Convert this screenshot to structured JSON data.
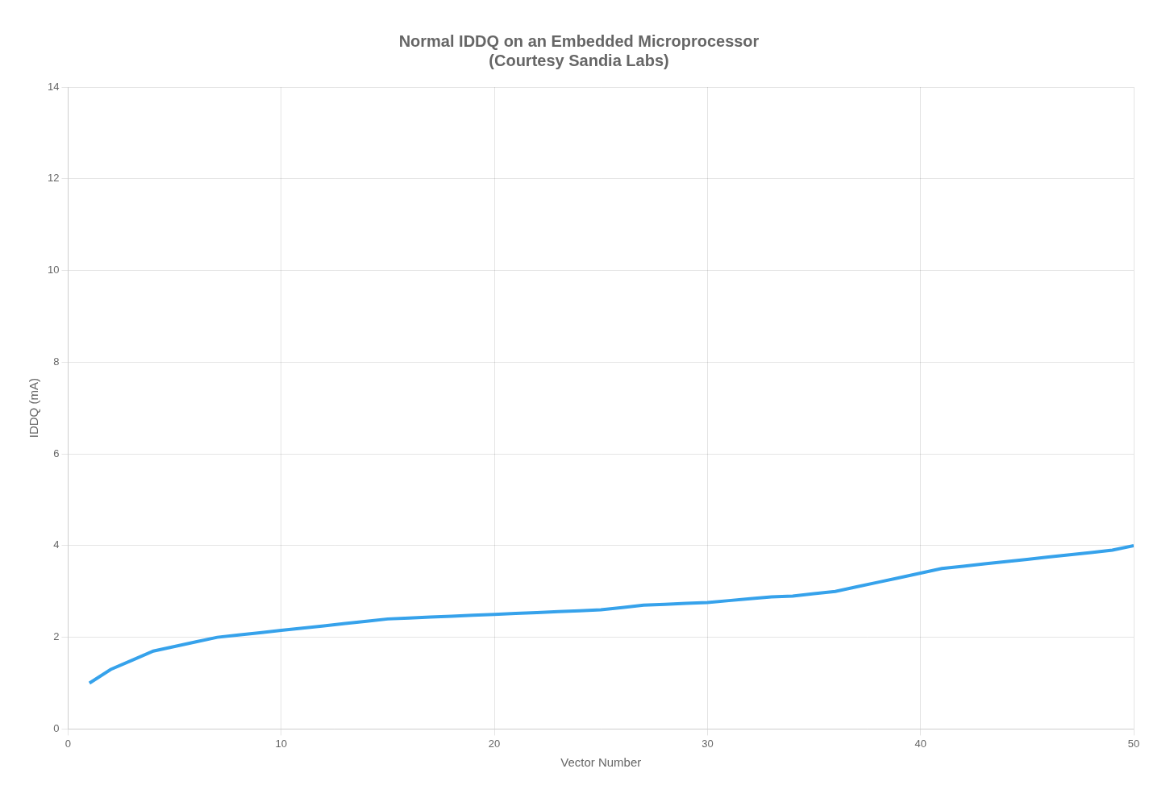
{
  "chart_data": {
    "type": "line",
    "title": "Normal IDDQ on an Embedded Microprocessor\n(Courtesy Sandia Labs)",
    "x_label": "Vector Number",
    "y_label": "IDDQ (mA)",
    "x": [
      1,
      2,
      3,
      4,
      5,
      6,
      7,
      8,
      9,
      10,
      11,
      12,
      13,
      14,
      15,
      16,
      17,
      18,
      19,
      20,
      21,
      22,
      23,
      24,
      25,
      26,
      27,
      28,
      29,
      30,
      31,
      32,
      33,
      34,
      35,
      36,
      37,
      38,
      39,
      40,
      41,
      42,
      43,
      44,
      45,
      46,
      47,
      48,
      49,
      50
    ],
    "values": [
      1.0,
      1.3,
      1.5,
      1.7,
      1.8,
      1.9,
      2.0,
      2.05,
      2.1,
      2.15,
      2.2,
      2.25,
      2.3,
      2.35,
      2.4,
      2.42,
      2.44,
      2.46,
      2.48,
      2.5,
      2.52,
      2.54,
      2.56,
      2.58,
      2.6,
      2.65,
      2.7,
      2.72,
      2.74,
      2.76,
      2.8,
      2.84,
      2.88,
      2.9,
      2.95,
      3.0,
      3.1,
      3.2,
      3.3,
      3.4,
      3.5,
      3.55,
      3.6,
      3.65,
      3.7,
      3.75,
      3.8,
      3.85,
      3.9,
      4.0
    ],
    "xlim": [
      0,
      50
    ],
    "xticks": [
      0,
      10,
      20,
      30,
      40,
      50
    ],
    "ylim": [
      0,
      14
    ],
    "yticks": [
      0,
      2,
      4,
      6,
      8,
      10,
      12,
      14
    ],
    "grid": true
  }
}
